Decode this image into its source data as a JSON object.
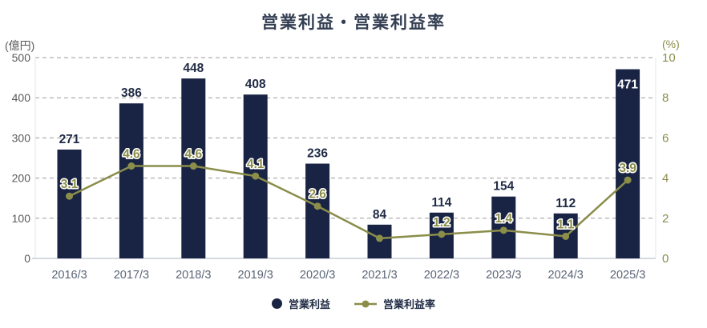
{
  "title": "営業利益・営業利益率",
  "chart_data": {
    "type": "combo",
    "title": "営業利益・営業利益率",
    "categories": [
      "2016/3",
      "2017/3",
      "2018/3",
      "2019/3",
      "2020/3",
      "2021/3",
      "2022/3",
      "2023/3",
      "2024/3",
      "2025/3"
    ],
    "series": [
      {
        "name": "営業利益",
        "type": "bar",
        "axis": "left",
        "unit": "億円",
        "color": "#192343",
        "values": [
          271,
          386,
          448,
          408,
          236,
          84,
          114,
          154,
          112,
          471
        ],
        "value_labels": [
          "271",
          "386",
          "448",
          "408",
          "236",
          "84",
          "114",
          "154",
          "112",
          "471"
        ],
        "label_inside": [
          false,
          false,
          false,
          false,
          false,
          false,
          false,
          false,
          false,
          true
        ]
      },
      {
        "name": "営業利益率",
        "type": "line",
        "axis": "right",
        "unit": "%",
        "color": "#8b8d4a",
        "values": [
          3.1,
          4.6,
          4.6,
          4.1,
          2.6,
          1.0,
          1.2,
          1.4,
          1.1,
          3.9
        ],
        "point_labels": [
          "3.1",
          "4.6",
          "4.6",
          "4.1",
          "2.6",
          "",
          "1.2",
          "1.4",
          "1.1",
          "3.9"
        ]
      }
    ],
    "axes": {
      "left": {
        "label": "(億円)",
        "min": 0,
        "max": 500,
        "step": 100,
        "tick_color": "#595959"
      },
      "right": {
        "label": "(%)",
        "min": 0,
        "max": 10,
        "step": 2,
        "tick_color": "#8b8d4a"
      },
      "x": {
        "tick_color": "#5a6576"
      }
    },
    "grid": {
      "show": true,
      "dashed": true,
      "color": "#9b9b9b"
    },
    "legend": {
      "position": "bottom-center",
      "entries": [
        {
          "label": "営業利益",
          "marker": "circle",
          "color": "#192343"
        },
        {
          "label": "営業利益率",
          "marker": "line-dot",
          "color": "#8b8d4a"
        }
      ]
    },
    "colors": {
      "bar_value_label": "#1f2a44",
      "bar_value_label_inside": "#ffffff",
      "point_label": "#8b8d4a",
      "point_label_outline": "#ffffff",
      "baseline": "#c7ced8",
      "title": "#333e52"
    }
  }
}
